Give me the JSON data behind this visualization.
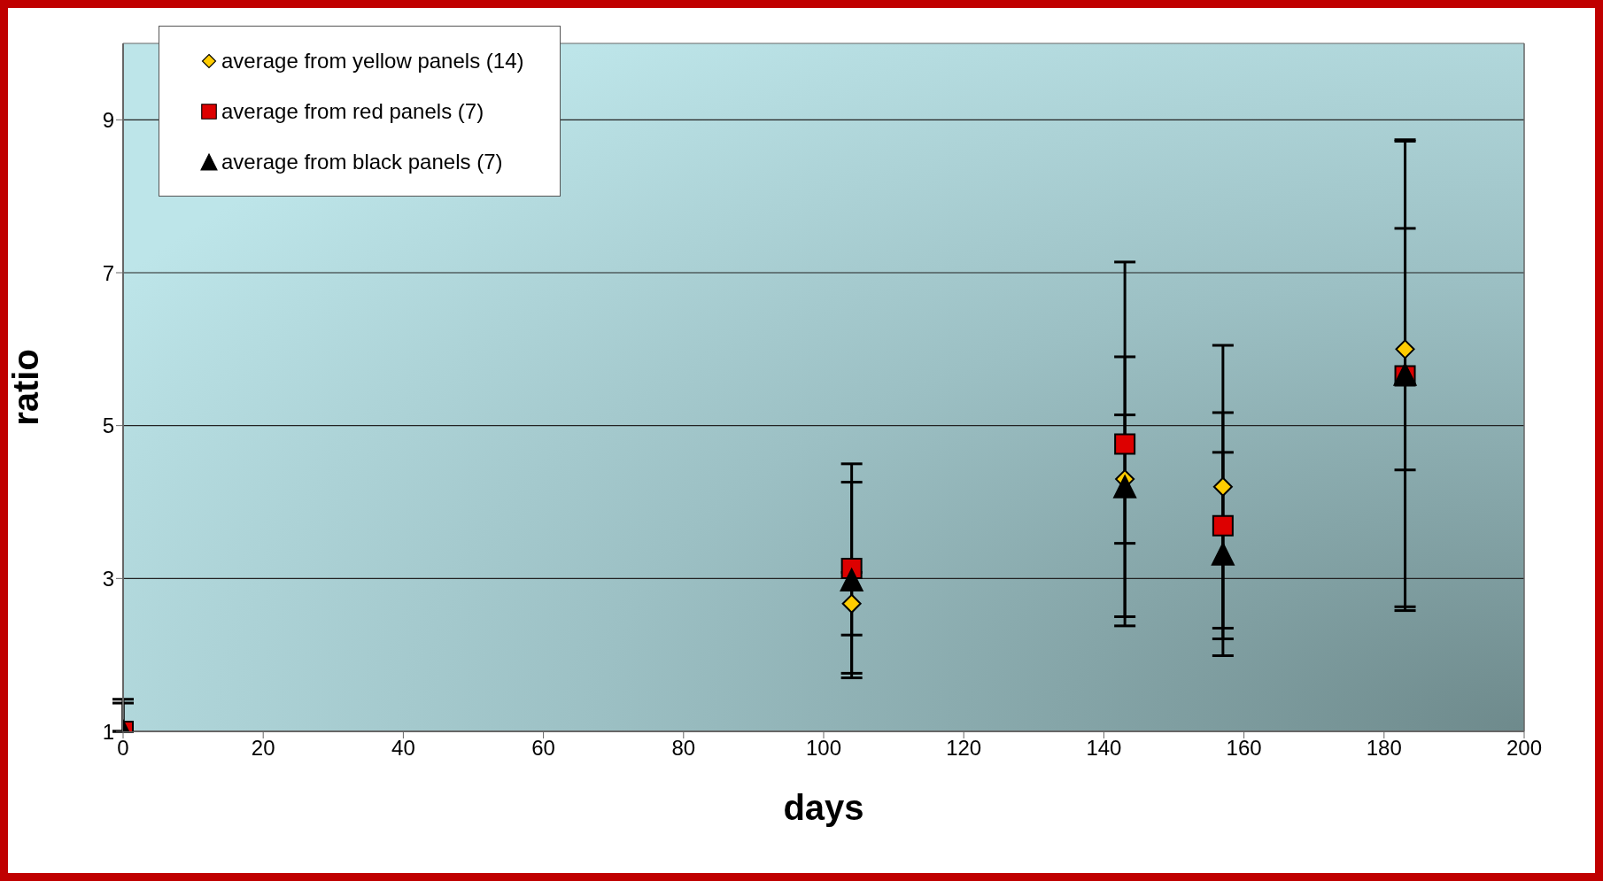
{
  "chart_data": {
    "type": "scatter",
    "xlabel": "days",
    "ylabel": "ratio",
    "x": [
      0,
      104,
      143,
      157,
      183
    ],
    "series": [
      {
        "name": "average from yellow panels (14)",
        "color": "#ffcc00",
        "marker": "diamond",
        "values": [
          null,
          2.67,
          4.3,
          4.2,
          6.0
        ],
        "errors": [
          null,
          0.41,
          0.84,
          1.85,
          1.58
        ]
      },
      {
        "name": "average from red panels (7)",
        "color": "#dd0000",
        "marker": "square",
        "values": [
          1,
          3.13,
          4.76,
          3.69,
          5.65
        ],
        "errors": [
          [
            1,
            1.42
          ],
          1.37,
          2.38,
          1.48,
          3.07
        ]
      },
      {
        "name": "average from black panels (7)",
        "color": "#000000",
        "marker": "triangle",
        "values": [
          1,
          2.98,
          4.2,
          3.32,
          5.67
        ],
        "errors": [
          [
            1,
            1.37
          ],
          1.28,
          1.7,
          1.33,
          [
            2.63,
            8.74
          ]
        ]
      }
    ],
    "xlim": [
      0,
      200
    ],
    "xticks": [
      0,
      20,
      40,
      60,
      80,
      100,
      120,
      140,
      160,
      180,
      200
    ],
    "ylim": [
      1,
      10
    ],
    "yticks": [
      1,
      3,
      5,
      7,
      9
    ],
    "grid": "y",
    "legend": "top left"
  }
}
